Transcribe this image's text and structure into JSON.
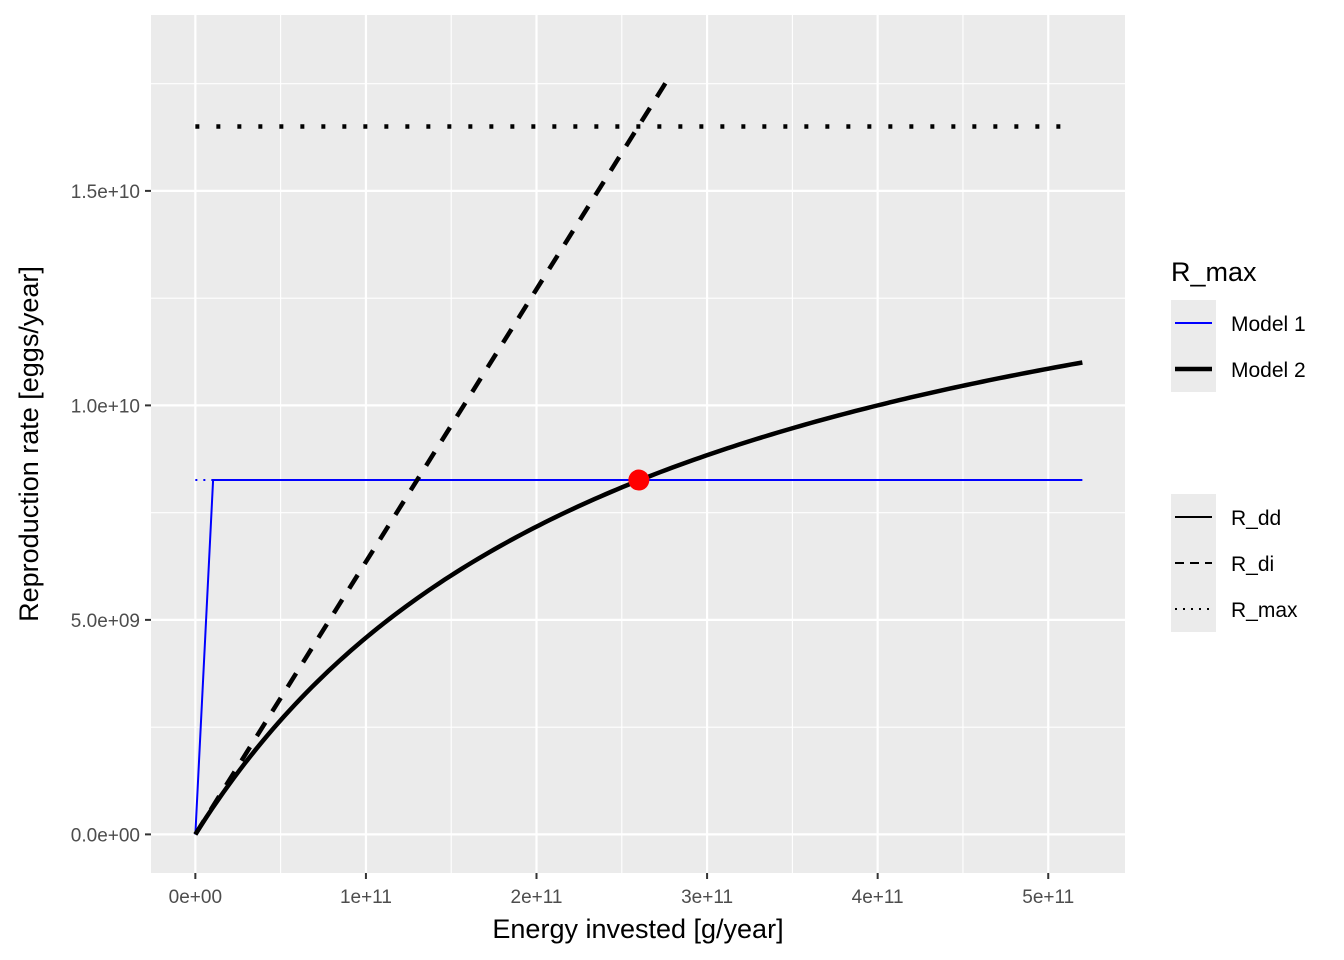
{
  "chart_data": {
    "type": "line",
    "xlabel": "Energy invested [g/year]",
    "ylabel": "Reproduction rate [eggs/year]",
    "xlim": [
      -26000000000.0,
      545000000000.0
    ],
    "ylim": [
      -900000000.0,
      19100000000.0
    ],
    "x_ticks": [
      0,
      100000000000.0,
      200000000000.0,
      300000000000.0,
      400000000000.0,
      500000000000.0
    ],
    "x_tick_labels": [
      "0e+00",
      "1e+11",
      "2e+11",
      "3e+11",
      "4e+11",
      "5e+11"
    ],
    "y_ticks": [
      0,
      5000000000.0,
      10000000000.0,
      15000000000.0
    ],
    "y_tick_labels": [
      "0.0e+00",
      "5.0e+09",
      "1.0e+10",
      "1.5e+10"
    ],
    "grid": true,
    "series": [
      {
        "group": "Model 1",
        "linetype": "R_dd",
        "color": "#0000ff",
        "width": "thin",
        "x": [
          0,
          10400000000.0,
          520000000000.0
        ],
        "y": [
          0,
          8260000000.0,
          8260000000.0
        ]
      },
      {
        "group": "Model 1",
        "linetype": "R_max",
        "color": "#0000ff",
        "width": "thin",
        "x": [
          0,
          11000000000.0
        ],
        "y": [
          8260000000.0,
          8260000000.0
        ]
      },
      {
        "group": "Model 2",
        "linetype": "R_dd",
        "color": "#000000",
        "width": "thick",
        "curve": "saturating",
        "r_max": 16500000000.0,
        "e_half": 260000000000.0,
        "x_range": [
          0,
          520000000000.0
        ]
      },
      {
        "group": "Model 2",
        "linetype": "R_di",
        "color": "#000000",
        "width": "thick",
        "x": [
          0,
          277000000000.0
        ],
        "y": [
          0,
          17600000000.0
        ]
      },
      {
        "group": "Model 2",
        "linetype": "R_max",
        "color": "#000000",
        "width": "thick",
        "x": [
          0,
          512000000000.0
        ],
        "y": [
          16500000000.0,
          16500000000.0
        ]
      }
    ],
    "point": {
      "x": 260000000000.0,
      "y": 8260000000.0,
      "color": "#ff0000"
    },
    "legend": {
      "placement": "right",
      "color_title": "R_max",
      "color_entries": [
        {
          "label": "Model 1",
          "color": "#0000ff",
          "width": "thin"
        },
        {
          "label": "Model 2",
          "color": "#000000",
          "width": "thick"
        }
      ],
      "linetype_entries": [
        {
          "label": "R_dd",
          "style": "solid"
        },
        {
          "label": "R_di",
          "style": "dashed"
        },
        {
          "label": "R_max",
          "style": "dotted"
        }
      ]
    }
  }
}
